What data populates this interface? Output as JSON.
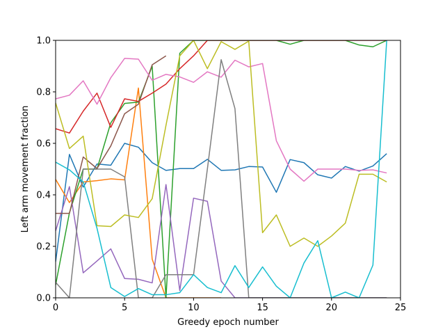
{
  "chart_data": {
    "type": "line",
    "title": "",
    "xlabel": "Greedy epoch number",
    "ylabel": "Left arm movement fraction",
    "xlim": [
      0,
      25
    ],
    "ylim": [
      0,
      1
    ],
    "xticks": [
      0,
      5,
      10,
      15,
      20,
      25
    ],
    "yticks": [
      0.0,
      0.2,
      0.4,
      0.6,
      0.8,
      1.0
    ],
    "xtick_labels": [
      "0",
      "5",
      "10",
      "15",
      "20",
      "25"
    ],
    "ytick_labels": [
      "0.0",
      "0.2",
      "0.4",
      "0.6",
      "0.8",
      "1.0"
    ],
    "grid": false,
    "legend": "none",
    "series": [
      {
        "color": "#1f77b4",
        "x": [
          0,
          1,
          2,
          3,
          4,
          5,
          6,
          7,
          8,
          9,
          10,
          11,
          12,
          13,
          14,
          15,
          16,
          17,
          18,
          19,
          20,
          21,
          22,
          23,
          24
        ],
        "y": [
          0.14,
          0.557,
          0.43,
          0.52,
          0.515,
          0.6,
          0.585,
          0.525,
          0.495,
          0.502,
          0.502,
          0.538,
          0.495,
          0.497,
          0.51,
          0.508,
          0.41,
          0.537,
          0.525,
          0.478,
          0.465,
          0.51,
          0.492,
          0.512,
          0.56
        ]
      },
      {
        "color": "#ff7f0e",
        "x": [
          0,
          1,
          2,
          3,
          4,
          5,
          6,
          7,
          8,
          9,
          10,
          11,
          12
        ],
        "y": [
          0.46,
          0.37,
          0.45,
          0.455,
          0.462,
          0.458,
          0.815,
          0.15,
          0.0,
          0.0,
          0.0,
          0.0,
          0.0
        ]
      },
      {
        "color": "#2ca02c",
        "x": [
          0,
          1,
          2,
          3,
          4,
          5,
          6,
          7,
          8,
          9,
          10,
          11,
          12,
          13,
          14,
          15,
          16,
          17,
          18,
          19,
          20,
          21,
          22,
          23,
          24
        ],
        "y": [
          0.05,
          0.33,
          0.5,
          0.5,
          0.68,
          0.755,
          0.76,
          0.9,
          0.0,
          0.95,
          1.0,
          1.0,
          1.0,
          1.0,
          1.0,
          1.0,
          1.0,
          0.985,
          1.0,
          1.0,
          1.0,
          1.0,
          0.982,
          0.975,
          1.0
        ]
      },
      {
        "color": "#d62728",
        "x": [
          0,
          1,
          2,
          3,
          4,
          5,
          6,
          7,
          8,
          9,
          10,
          11,
          12,
          13,
          14,
          15,
          16,
          17,
          18,
          19,
          20,
          21,
          22,
          23,
          24
        ],
        "y": [
          0.657,
          0.64,
          0.725,
          0.795,
          0.662,
          0.773,
          0.763,
          0.795,
          0.83,
          0.89,
          0.94,
          1.0,
          1.0,
          1.0,
          1.0,
          1.0,
          1.0,
          1.0,
          1.0,
          1.0,
          1.0,
          1.0,
          1.0,
          1.0,
          1.0
        ]
      },
      {
        "color": "#9467bd",
        "x": [
          0,
          1,
          2,
          3,
          4,
          5,
          6,
          7,
          8,
          9,
          10,
          11,
          12,
          13,
          14,
          15,
          16,
          17,
          18,
          19,
          20,
          21,
          22,
          23,
          24
        ],
        "y": [
          0.26,
          0.432,
          0.097,
          0.143,
          0.19,
          0.075,
          0.072,
          0.058,
          0.44,
          0.028,
          0.387,
          0.375,
          0.065,
          0.0,
          0.0,
          0.0,
          0.0,
          0.0,
          0.0,
          0.0,
          0.0,
          0.0,
          0.0,
          0.0,
          0.0
        ]
      },
      {
        "color": "#8c564b",
        "x": [
          0,
          1,
          2,
          3,
          4,
          5,
          6,
          7,
          8
        ],
        "y": [
          0.328,
          0.328,
          0.547,
          0.502,
          0.59,
          0.715,
          0.752,
          0.905,
          0.94
        ]
      },
      {
        "color": "#e377c2",
        "x": [
          0,
          1,
          2,
          3,
          4,
          5,
          6,
          7,
          8,
          9,
          10,
          11,
          12,
          13,
          14,
          15,
          16,
          17,
          18,
          19,
          20,
          21,
          22,
          23,
          24
        ],
        "y": [
          0.773,
          0.787,
          0.843,
          0.752,
          0.855,
          0.93,
          0.927,
          0.845,
          0.868,
          0.858,
          0.837,
          0.878,
          0.857,
          0.923,
          0.897,
          0.91,
          0.61,
          0.5,
          0.453,
          0.5,
          0.5,
          0.5,
          0.495,
          0.497,
          0.485
        ]
      },
      {
        "color": "#7f7f7f",
        "x": [
          0,
          1,
          2,
          3,
          4,
          5,
          6,
          7,
          8,
          9,
          10,
          11,
          12,
          13,
          14,
          15,
          16,
          17,
          18,
          19,
          20,
          21,
          22,
          23,
          24
        ],
        "y": [
          0.06,
          0.0,
          0.5,
          0.5,
          0.5,
          0.47,
          0.0,
          0.0,
          0.09,
          0.09,
          0.09,
          0.5,
          0.925,
          0.735,
          0.0,
          0.0,
          0.0,
          0.0,
          0.0,
          0.0,
          0.0,
          0.0,
          0.0,
          0.0,
          0.0
        ]
      },
      {
        "color": "#bcbd22",
        "x": [
          0,
          1,
          2,
          3,
          4,
          5,
          6,
          7,
          8,
          9,
          10,
          11,
          12,
          13,
          14,
          15,
          16,
          17,
          18,
          19,
          20,
          21,
          22,
          23,
          24
        ],
        "y": [
          0.757,
          0.58,
          0.628,
          0.28,
          0.277,
          0.322,
          0.312,
          0.385,
          0.67,
          0.94,
          1.0,
          0.89,
          0.995,
          0.965,
          0.997,
          0.253,
          0.322,
          0.2,
          0.232,
          0.2,
          0.24,
          0.29,
          0.48,
          0.48,
          0.45
        ]
      },
      {
        "color": "#17becf",
        "x": [
          0,
          1,
          2,
          3,
          4,
          5,
          6,
          7,
          8,
          9,
          10,
          11,
          12,
          13,
          14,
          15,
          16,
          17,
          18,
          19,
          20,
          21,
          22,
          23,
          24
        ],
        "y": [
          0.527,
          0.497,
          0.45,
          0.27,
          0.04,
          0.005,
          0.036,
          0.012,
          0.012,
          0.02,
          0.09,
          0.04,
          0.02,
          0.125,
          0.04,
          0.12,
          0.045,
          0.0,
          0.135,
          0.222,
          0.0,
          0.022,
          0.0,
          0.127,
          1.0
        ]
      }
    ]
  }
}
